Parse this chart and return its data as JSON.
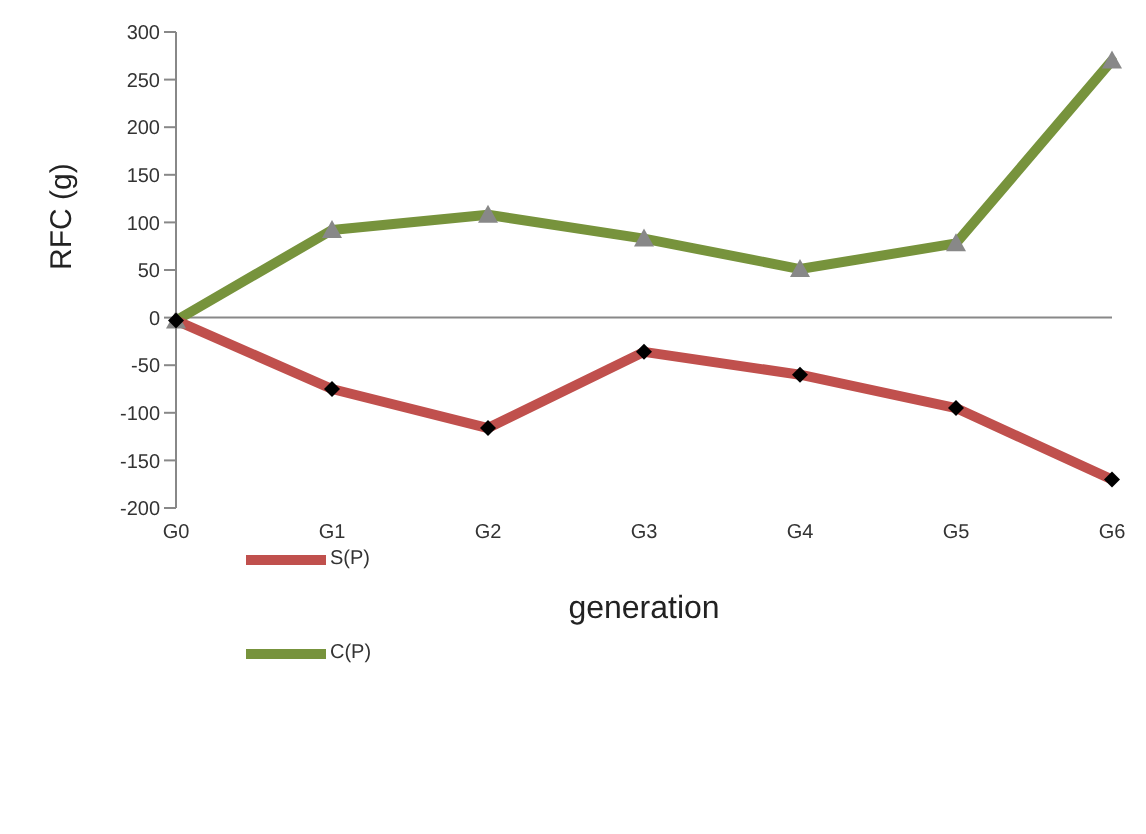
{
  "chart_data": {
    "type": "line",
    "xlabel": "generation",
    "ylabel": "RFC (g)",
    "categories": [
      "G0",
      "G1",
      "G2",
      "G3",
      "G4",
      "G5",
      "G6"
    ],
    "series": [
      {
        "name": "S(P)",
        "color": "#c0504d",
        "marker": "diamond",
        "values": [
          -3,
          -75,
          -116,
          -36,
          -60,
          -95,
          -170
        ]
      },
      {
        "name": "C(P)",
        "color": "#77933c",
        "marker": "triangle",
        "values": [
          -3,
          92,
          108,
          83,
          51,
          78,
          270
        ]
      }
    ],
    "ylim": [
      -200,
      300
    ],
    "yticks": [
      -200,
      -150,
      -100,
      -50,
      0,
      50,
      100,
      150,
      200,
      250,
      300
    ],
    "ref_lines": [
      {
        "axis": "y",
        "value": 0,
        "color": "#888888"
      }
    ],
    "grid": false,
    "legend": "left"
  }
}
